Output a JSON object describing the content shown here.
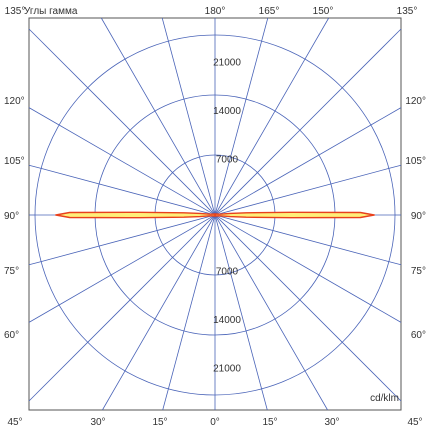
{
  "chart_data": {
    "type": "polar",
    "title": "Углы гамма",
    "unit": "cd/klm",
    "radial_ticks": [
      "21000",
      "14000",
      "7000"
    ],
    "rmax": 26000,
    "top_angle_labels": [
      "135°",
      "180°",
      "165°",
      "150°",
      "135°"
    ],
    "bottom_angle_labels": [
      "45°",
      "30°",
      "15°",
      "0°",
      "15°",
      "30°",
      "45°"
    ],
    "left_angle_labels": [
      "120°",
      "105°",
      "90°",
      "75°",
      "60°"
    ],
    "right_angle_labels": [
      "120°",
      "105°",
      "90°",
      "75°",
      "60°"
    ],
    "series": [
      {
        "gamma": [
          0,
          80,
          84,
          86,
          88,
          89,
          90,
          91,
          92,
          94,
          96,
          100,
          180
        ],
        "intensity": [
          150,
          700,
          2200,
          4500,
          11000,
          21000,
          23000,
          21000,
          11000,
          4500,
          2200,
          700,
          150
        ],
        "stroke": "#e8401c",
        "fill": "#ffef7a"
      }
    ],
    "colors": {
      "grid": "#4a64b8",
      "frame": "#555555",
      "curve": "#e8401c",
      "curve_fill": "#ffef7a"
    }
  }
}
